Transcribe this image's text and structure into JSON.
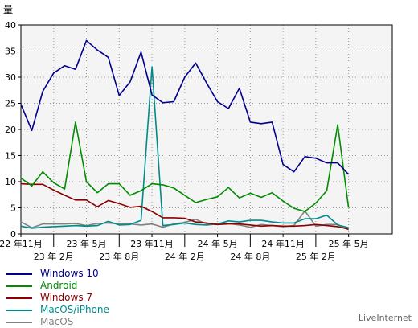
{
  "chart_data": {
    "type": "line",
    "ylabel": "量",
    "ylim": [
      0,
      40
    ],
    "yticks": [
      0,
      5,
      10,
      15,
      20,
      25,
      30,
      35,
      40
    ],
    "xlim": [
      0,
      34
    ],
    "grid": true,
    "legend_placement": "bottom-left",
    "x_ticks": [
      {
        "x": 0,
        "label": "22 年11月",
        "row": 1
      },
      {
        "x": 3,
        "label": "23 年 2月",
        "row": 2
      },
      {
        "x": 6,
        "label": "23 年 5月",
        "row": 1
      },
      {
        "x": 9,
        "label": "23 年 8月",
        "row": 2
      },
      {
        "x": 12,
        "label": "23 年11月",
        "row": 1
      },
      {
        "x": 15,
        "label": "24 年 2月",
        "row": 2
      },
      {
        "x": 18,
        "label": "24 年 5月",
        "row": 1
      },
      {
        "x": 21,
        "label": "24 年 8月",
        "row": 2
      },
      {
        "x": 24,
        "label": "24 年11月",
        "row": 1
      },
      {
        "x": 27,
        "label": "25 年 2月",
        "row": 2
      },
      {
        "x": 30,
        "label": "25 年 5月",
        "row": 1
      }
    ],
    "series": [
      {
        "name": "Windows 10",
        "color": "#00008b",
        "values": [
          24.8,
          19.8,
          27.3,
          30.8,
          32.2,
          31.5,
          37.0,
          35.2,
          33.8,
          26.5,
          29.1,
          34.8,
          26.6,
          25.1,
          25.3,
          30.0,
          32.7,
          28.9,
          25.3,
          24.0,
          27.9,
          21.4,
          21.1,
          21.4,
          13.3,
          11.9,
          14.8,
          14.5,
          13.6,
          13.6,
          11.4
        ]
      },
      {
        "name": "Android",
        "color": "#008b00",
        "values": [
          10.7,
          9.2,
          11.9,
          9.8,
          8.6,
          21.4,
          10.0,
          7.9,
          9.6,
          9.6,
          7.4,
          8.3,
          9.6,
          9.4,
          8.8,
          7.4,
          6.0,
          6.6,
          7.1,
          8.9,
          6.9,
          7.8,
          7.0,
          7.9,
          6.3,
          4.9,
          4.3,
          5.9,
          8.3,
          20.9,
          5.0
        ]
      },
      {
        "name": "Windows 7",
        "color": "#8b0000",
        "values": [
          9.6,
          9.5,
          9.5,
          8.4,
          7.4,
          6.5,
          6.5,
          5.2,
          6.4,
          5.8,
          5.1,
          5.3,
          4.3,
          3.1,
          3.1,
          3.0,
          2.3,
          2.1,
          1.8,
          1.9,
          1.9,
          1.7,
          1.5,
          1.6,
          1.5,
          1.5,
          1.6,
          1.8,
          1.6,
          1.4,
          0.9
        ]
      },
      {
        "name": "MacOS/iPhone",
        "color": "#008b8b",
        "values": [
          1.5,
          1.1,
          1.3,
          1.4,
          1.5,
          1.6,
          1.5,
          1.6,
          2.4,
          1.7,
          1.8,
          2.6,
          32.0,
          1.6,
          1.8,
          2.1,
          1.8,
          1.7,
          1.9,
          2.5,
          2.3,
          2.6,
          2.6,
          2.3,
          2.1,
          2.1,
          2.9,
          2.9,
          3.6,
          1.7,
          1.2
        ]
      },
      {
        "name": "MacOS",
        "color": "#808080",
        "values": [
          2.3,
          1.2,
          1.9,
          1.9,
          1.9,
          2.0,
          1.6,
          2.0,
          2.1,
          1.9,
          1.9,
          1.7,
          1.9,
          1.3,
          1.9,
          2.2,
          2.8,
          1.9,
          1.8,
          2.0,
          1.7,
          1.3,
          1.8,
          1.6,
          1.4,
          1.6,
          4.4,
          1.5,
          1.8,
          1.8,
          0.8
        ]
      }
    ]
  },
  "credit": "LiveInternet"
}
